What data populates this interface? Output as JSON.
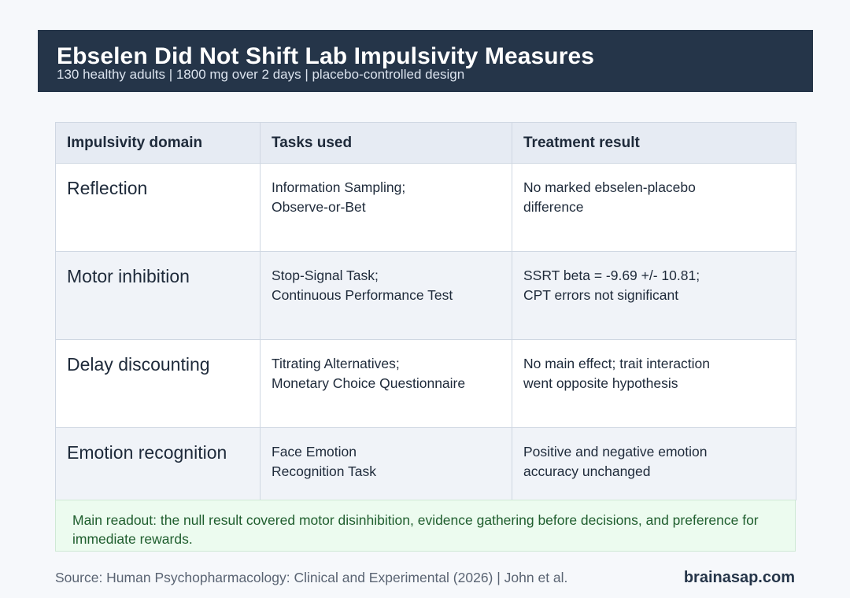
{
  "header": {
    "title": "Ebselen Did Not Shift Lab Impulsivity Measures",
    "subtitle": "130 healthy adults | 1800 mg over 2 days | placebo-controlled design"
  },
  "table": {
    "columns": [
      "Impulsivity domain",
      "Tasks used",
      "Treatment result"
    ],
    "rows": [
      {
        "domain": "Reflection",
        "tasks": "Information Sampling;\nObserve-or-Bet",
        "result": "No marked ebselen-placebo\ndifference"
      },
      {
        "domain": "Motor inhibition",
        "tasks": "Stop-Signal Task;\nContinuous Performance Test",
        "result": "SSRT beta = -9.69 +/- 10.81;\nCPT errors not significant"
      },
      {
        "domain": "Delay discounting",
        "tasks": "Titrating Alternatives;\nMonetary Choice Questionnaire",
        "result": "No main effect; trait interaction\nwent opposite hypothesis"
      },
      {
        "domain": "Emotion recognition",
        "tasks": "Face Emotion\nRecognition Task",
        "result": "Positive and negative emotion\naccuracy unchanged"
      }
    ]
  },
  "readout": "Main readout: the null result covered motor disinhibition, evidence gathering before decisions, and preference for immediate rewards.",
  "footer": {
    "source": "Source: Human Psychopharmacology: Clinical and Experimental (2026) | John et al.",
    "brand": "brainasap.com"
  },
  "colors": {
    "banner": "#253549",
    "header_row": "#e6ebf3",
    "alt_row": "#f0f3f8",
    "readout_bg": "#ecfbef",
    "readout_text": "#1f5e2e"
  }
}
